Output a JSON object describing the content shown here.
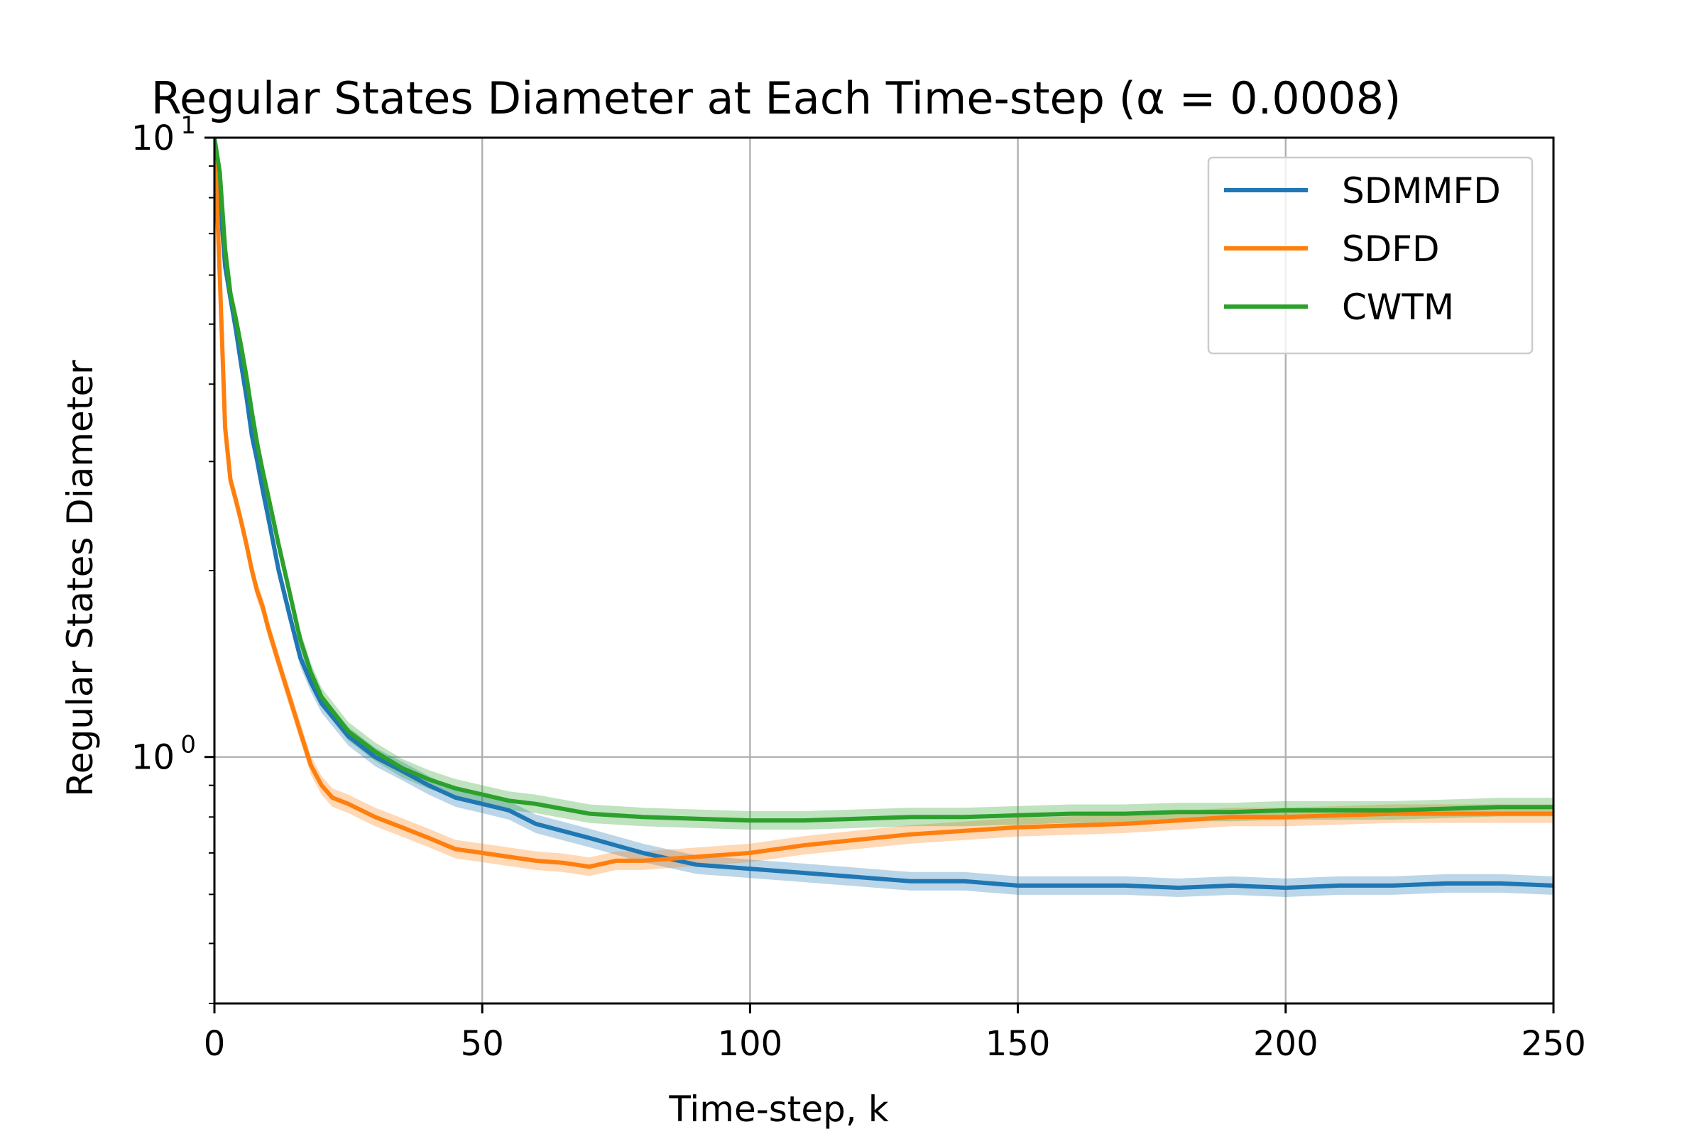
{
  "chart_data": {
    "type": "line",
    "title": "Regular States Diameter at Each Time-step (α = 0.0008)",
    "xlabel": "Time-step, k",
    "ylabel": "Regular States Diameter",
    "xlim": [
      0,
      250
    ],
    "ylim": [
      0.4,
      10
    ],
    "yscale": "log",
    "grid": true,
    "legend_position": "top-right",
    "x_ticks": [
      0,
      50,
      100,
      150,
      200,
      250
    ],
    "x_tick_labels": [
      "0",
      "50",
      "100",
      "150",
      "200",
      "250"
    ],
    "y_ticks": [
      1,
      10
    ],
    "y_tick_labels": [
      {
        "base": "10",
        "exp": "0"
      },
      {
        "base": "10",
        "exp": "1"
      }
    ],
    "y_minor_ticks": [
      0.4,
      0.5,
      0.6,
      0.7,
      0.8,
      0.9,
      2,
      3,
      4,
      5,
      6,
      7,
      8,
      9
    ],
    "series": [
      {
        "name": "SDMMFD",
        "color": "#1f77b4",
        "x": [
          0,
          1,
          2,
          3,
          4,
          5,
          6,
          7,
          8,
          9,
          10,
          12,
          14,
          16,
          18,
          20,
          25,
          30,
          35,
          40,
          45,
          50,
          55,
          60,
          70,
          80,
          90,
          100,
          110,
          120,
          130,
          140,
          150,
          160,
          170,
          180,
          190,
          200,
          210,
          220,
          230,
          240,
          250
        ],
        "y": [
          10,
          8.0,
          6.2,
          5.5,
          4.9,
          4.3,
          3.8,
          3.3,
          3.0,
          2.7,
          2.45,
          2.0,
          1.7,
          1.45,
          1.32,
          1.22,
          1.08,
          1.0,
          0.95,
          0.9,
          0.86,
          0.84,
          0.82,
          0.78,
          0.74,
          0.7,
          0.67,
          0.66,
          0.65,
          0.64,
          0.63,
          0.63,
          0.62,
          0.62,
          0.62,
          0.615,
          0.62,
          0.615,
          0.62,
          0.62,
          0.625,
          0.625,
          0.62
        ]
      },
      {
        "name": "SDFD",
        "color": "#ff7f0e",
        "x": [
          0,
          1,
          2,
          3,
          4,
          5,
          6,
          7,
          8,
          9,
          10,
          12,
          14,
          16,
          18,
          20,
          22,
          25,
          30,
          35,
          40,
          45,
          50,
          55,
          60,
          65,
          70,
          75,
          80,
          90,
          100,
          110,
          120,
          130,
          140,
          150,
          160,
          170,
          180,
          190,
          200,
          210,
          220,
          230,
          240,
          250
        ],
        "y": [
          10,
          6.0,
          3.4,
          2.8,
          2.6,
          2.4,
          2.2,
          2.0,
          1.85,
          1.75,
          1.62,
          1.42,
          1.25,
          1.1,
          0.97,
          0.9,
          0.86,
          0.84,
          0.8,
          0.77,
          0.74,
          0.71,
          0.7,
          0.69,
          0.68,
          0.675,
          0.665,
          0.68,
          0.68,
          0.69,
          0.7,
          0.72,
          0.735,
          0.75,
          0.76,
          0.77,
          0.775,
          0.78,
          0.79,
          0.8,
          0.8,
          0.805,
          0.81,
          0.81,
          0.81,
          0.81
        ]
      },
      {
        "name": "CWTM",
        "color": "#2ca02c",
        "x": [
          0,
          1,
          2,
          3,
          4,
          5,
          6,
          7,
          8,
          9,
          10,
          12,
          14,
          16,
          18,
          20,
          25,
          30,
          35,
          40,
          45,
          50,
          55,
          60,
          70,
          80,
          90,
          100,
          110,
          120,
          130,
          140,
          150,
          160,
          170,
          180,
          190,
          200,
          210,
          220,
          230,
          240,
          250
        ],
        "y": [
          10,
          8.8,
          6.6,
          5.6,
          5.1,
          4.6,
          4.1,
          3.6,
          3.2,
          2.9,
          2.65,
          2.2,
          1.85,
          1.55,
          1.37,
          1.25,
          1.1,
          1.02,
          0.96,
          0.92,
          0.89,
          0.87,
          0.85,
          0.84,
          0.81,
          0.8,
          0.795,
          0.79,
          0.79,
          0.795,
          0.8,
          0.8,
          0.805,
          0.81,
          0.81,
          0.815,
          0.815,
          0.82,
          0.82,
          0.82,
          0.825,
          0.83,
          0.83
        ]
      }
    ]
  }
}
